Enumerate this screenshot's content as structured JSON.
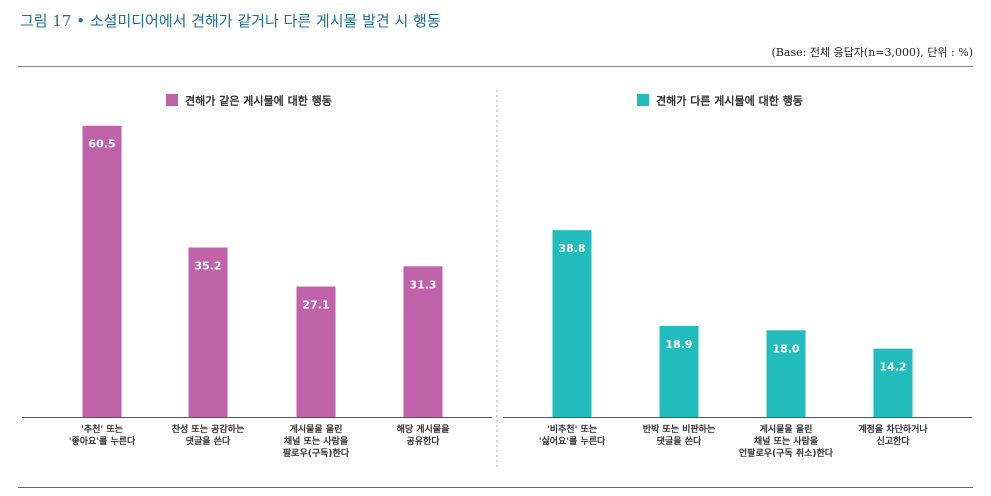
{
  "figure_title": "그림 17 • 소셜미디어에서 견해가 같거나 다른 게시물 발견 시 행동",
  "base_note": "(Base: 전체 응답자(n=3,000), 단위 : %)",
  "chart_data": [
    {
      "type": "bar",
      "legend": "견해가 같은 게시물에 대한 행동",
      "color": "#c062aa",
      "categories": [
        [
          "'추천' 또는",
          "'좋아요'를 누른다"
        ],
        [
          "찬성 또는 공감하는",
          "댓글을 쓴다"
        ],
        [
          "게시물을 올린",
          "채널 또는 사람을",
          "팔로우(구독)한다"
        ],
        [
          "해당 게시물을",
          "공유한다"
        ]
      ],
      "values": [
        60.5,
        35.2,
        27.1,
        31.3
      ],
      "ylim": [
        0,
        70
      ]
    },
    {
      "type": "bar",
      "legend": "견해가 다른 게시물에 대한 행동",
      "color": "#22bcbc",
      "categories": [
        [
          "'비추천' 또는",
          "'싫어요'를 누른다"
        ],
        [
          "반박 또는 비판하는",
          "댓글을 쓴다"
        ],
        [
          "게시물을 올린",
          "채널 또는 사람을",
          "언팔로우(구독 취소)한다"
        ],
        [
          "계정을 차단하거나",
          "신고한다"
        ]
      ],
      "values": [
        38.8,
        18.9,
        18.0,
        14.2
      ],
      "ylim": [
        0,
        70
      ]
    }
  ]
}
